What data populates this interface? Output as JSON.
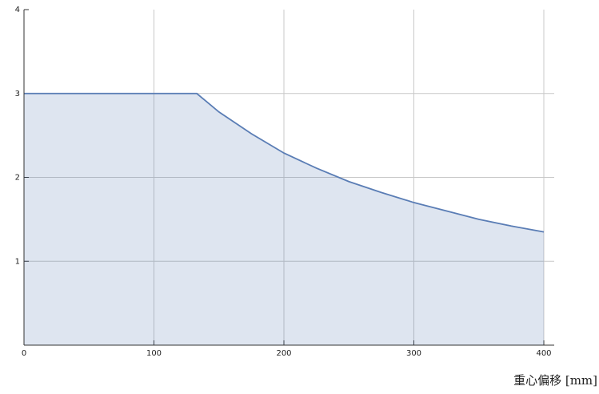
{
  "chart_data": {
    "type": "area",
    "x_label": "重心偏移 [mm]",
    "x": [
      0,
      133,
      150,
      175,
      200,
      225,
      250,
      275,
      300,
      325,
      350,
      375,
      400
    ],
    "series": [
      {
        "color": "#5a7db5",
        "values": [
          3,
          3,
          2.78,
          2.52,
          2.29,
          2.11,
          1.95,
          1.82,
          1.7,
          1.6,
          1.5,
          1.42,
          1.35
        ]
      }
    ],
    "xlim": [
      0,
      408
    ],
    "xticks": [
      0,
      100,
      200,
      300,
      400
    ],
    "ylim": [
      0,
      4
    ],
    "yticks": [
      1,
      2,
      3,
      4
    ],
    "grid": true
  }
}
